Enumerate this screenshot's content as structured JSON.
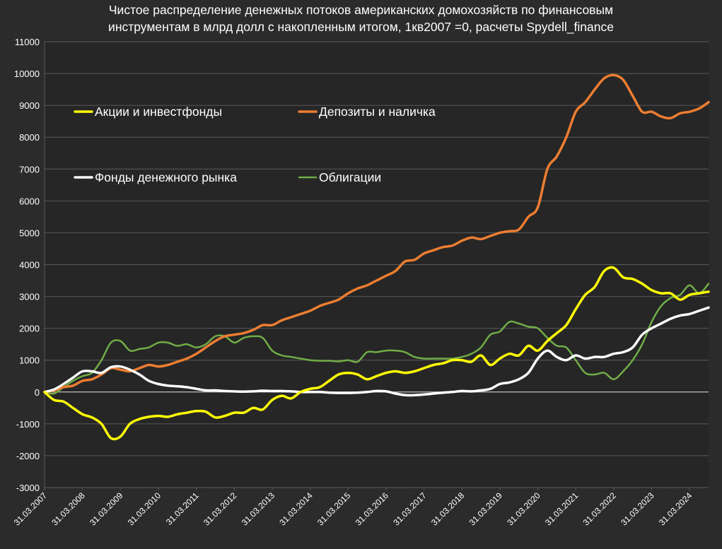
{
  "chart_data": {
    "type": "line",
    "title_lines": [
      "Чистое распределение денежных потоков американских домохозяйств по финансовым",
      "инструментам в млрд долл с накопленным итогом, 1кв2007 =0, расчеты Spydell_finance"
    ],
    "xlabel": "",
    "ylabel": "",
    "ylim": [
      -3000,
      11000
    ],
    "yticks": [
      -3000,
      -2000,
      -1000,
      0,
      1000,
      2000,
      3000,
      4000,
      5000,
      6000,
      7000,
      8000,
      9000,
      10000,
      11000
    ],
    "grid": true,
    "legend_position": "top-left, inside plot",
    "x_tick_labels": [
      "31.03.2007",
      "31.03.2008",
      "31.03.2009",
      "31.03.2010",
      "31.03.2011",
      "31.03.2012",
      "31.03.2013",
      "31.03.2014",
      "31.03.2015",
      "31.03.2016",
      "31.03.2017",
      "31.03.2018",
      "31.03.2019",
      "31.03.2020",
      "31.03.2021",
      "31.03.2022",
      "31.03.2023",
      "31.03.2024"
    ],
    "x_start": "31.03.2007",
    "x_end": "30.09.2024",
    "x": [
      "2007Q1",
      "2007Q2",
      "2007Q3",
      "2007Q4",
      "2008Q1",
      "2008Q2",
      "2008Q3",
      "2008Q4",
      "2009Q1",
      "2009Q2",
      "2009Q3",
      "2009Q4",
      "2010Q1",
      "2010Q2",
      "2010Q3",
      "2010Q4",
      "2011Q1",
      "2011Q2",
      "2011Q3",
      "2011Q4",
      "2012Q1",
      "2012Q2",
      "2012Q3",
      "2012Q4",
      "2013Q1",
      "2013Q2",
      "2013Q3",
      "2013Q4",
      "2014Q1",
      "2014Q2",
      "2014Q3",
      "2014Q4",
      "2015Q1",
      "2015Q2",
      "2015Q3",
      "2015Q4",
      "2016Q1",
      "2016Q2",
      "2016Q3",
      "2016Q4",
      "2017Q1",
      "2017Q2",
      "2017Q3",
      "2017Q4",
      "2018Q1",
      "2018Q2",
      "2018Q3",
      "2018Q4",
      "2019Q1",
      "2019Q2",
      "2019Q3",
      "2019Q4",
      "2020Q1",
      "2020Q2",
      "2020Q3",
      "2020Q4",
      "2021Q1",
      "2021Q2",
      "2021Q3",
      "2021Q4",
      "2022Q1",
      "2022Q2",
      "2022Q3",
      "2022Q4",
      "2023Q1",
      "2023Q2",
      "2023Q3",
      "2023Q4",
      "2024Q1",
      "2024Q2",
      "2024Q3"
    ],
    "series": [
      {
        "name": "Акции и инвестфонды",
        "color": "#ffff00",
        "values": [
          0,
          -250,
          -300,
          -500,
          -700,
          -800,
          -1000,
          -1450,
          -1400,
          -1000,
          -850,
          -780,
          -750,
          -780,
          -700,
          -650,
          -600,
          -620,
          -800,
          -750,
          -650,
          -650,
          -500,
          -550,
          -250,
          -120,
          -200,
          0,
          100,
          150,
          350,
          550,
          600,
          550,
          400,
          500,
          600,
          650,
          600,
          650,
          750,
          850,
          900,
          1000,
          1000,
          950,
          1150,
          850,
          1050,
          1200,
          1150,
          1450,
          1300,
          1600,
          1850,
          2100,
          2600,
          3050,
          3300,
          3800,
          3900,
          3600,
          3550,
          3400,
          3200,
          3100,
          3100,
          2900,
          3050,
          3100,
          3150
        ]
      },
      {
        "name": "Депозиты и наличка",
        "color": "#ed7d31",
        "values": [
          0,
          50,
          150,
          200,
          350,
          400,
          550,
          750,
          700,
          650,
          750,
          850,
          800,
          850,
          950,
          1050,
          1200,
          1400,
          1600,
          1750,
          1800,
          1850,
          1950,
          2100,
          2100,
          2250,
          2350,
          2450,
          2550,
          2700,
          2800,
          2900,
          3100,
          3250,
          3350,
          3500,
          3650,
          3800,
          4100,
          4150,
          4350,
          4450,
          4550,
          4600,
          4750,
          4850,
          4800,
          4900,
          5000,
          5050,
          5100,
          5500,
          5800,
          7000,
          7400,
          8000,
          8800,
          9100,
          9500,
          9850,
          9950,
          9800,
          9300,
          8800,
          8800,
          8650,
          8600,
          8750,
          8800,
          8900,
          9100
        ]
      },
      {
        "name": "Фонды денежного рынка",
        "color": "#ffffff",
        "values": [
          0,
          80,
          250,
          450,
          650,
          650,
          600,
          780,
          800,
          700,
          550,
          350,
          250,
          200,
          180,
          150,
          100,
          50,
          50,
          30,
          20,
          10,
          20,
          40,
          30,
          30,
          20,
          0,
          0,
          0,
          -20,
          -30,
          -30,
          -20,
          0,
          30,
          20,
          -50,
          -100,
          -100,
          -80,
          -50,
          -20,
          0,
          30,
          20,
          50,
          100,
          250,
          300,
          400,
          600,
          1050,
          1300,
          1100,
          1000,
          1150,
          1050,
          1100,
          1100,
          1200,
          1250,
          1400,
          1800,
          2000,
          2150,
          2300,
          2400,
          2450,
          2550,
          2650
        ]
      },
      {
        "name": "Облигации",
        "color": "#70ad47",
        "values": [
          0,
          -50,
          150,
          350,
          500,
          600,
          1000,
          1550,
          1600,
          1300,
          1350,
          1400,
          1550,
          1550,
          1450,
          1500,
          1400,
          1500,
          1750,
          1750,
          1550,
          1700,
          1750,
          1700,
          1300,
          1150,
          1100,
          1050,
          1000,
          980,
          980,
          960,
          1000,
          950,
          1250,
          1250,
          1300,
          1300,
          1250,
          1100,
          1050,
          1050,
          1050,
          1050,
          1100,
          1200,
          1400,
          1800,
          1900,
          2200,
          2150,
          2050,
          2000,
          1700,
          1450,
          1400,
          1000,
          600,
          550,
          600,
          400,
          650,
          1000,
          1500,
          2200,
          2700,
          2950,
          3050,
          3350,
          3100,
          3400
        ]
      }
    ]
  },
  "styles": {
    "background": "#2b2b2b",
    "plot_background": "#262626",
    "grid_color": "#5a5a5a",
    "zero_line_color": "#bfbfbf",
    "text_color": "#ffffff"
  }
}
